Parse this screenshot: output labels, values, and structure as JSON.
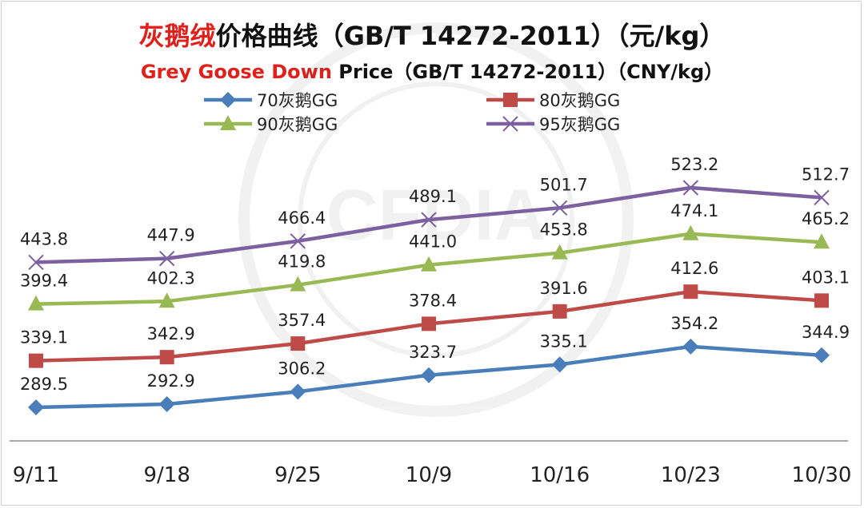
{
  "chart_data": {
    "type": "line",
    "title_highlight": "灰鹅绒",
    "title_rest": "价格曲线（GB/T 14272-2011）（元/kg）",
    "subtitle_highlight": "Grey Goose Down",
    "subtitle_rest": " Price（GB/T 14272-2011）（CNY/kg）",
    "categories": [
      "9/11",
      "9/18",
      "9/25",
      "10/9",
      "10/16",
      "10/23",
      "10/30"
    ],
    "series": [
      {
        "name": "70灰鹅GG",
        "values": [
          289.5,
          292.9,
          306.2,
          323.7,
          335.1,
          354.2,
          344.9
        ],
        "color": "#4a7ebb",
        "marker": "diamond"
      },
      {
        "name": "80灰鹅GG",
        "values": [
          339.1,
          342.9,
          357.4,
          378.4,
          391.6,
          412.6,
          403.1
        ],
        "color": "#be4b48",
        "marker": "square"
      },
      {
        "name": "90灰鹅GG",
        "values": [
          399.4,
          402.3,
          419.8,
          441.0,
          453.8,
          474.1,
          465.2
        ],
        "color": "#98b954",
        "marker": "triangle"
      },
      {
        "name": "95灰鹅GG",
        "values": [
          443.8,
          447.9,
          466.4,
          489.1,
          501.7,
          523.2,
          512.7
        ],
        "color": "#7d60a0",
        "marker": "x"
      }
    ],
    "value_labels": {
      "70灰鹅GG": [
        "289.5",
        "292.9",
        "306.2",
        "323.7",
        "335.1",
        "354.2",
        "344.9"
      ],
      "80灰鹅GG": [
        "339.1",
        "342.9",
        "357.4",
        "378.4",
        "391.6",
        "412.6",
        "403.1"
      ],
      "90灰鹅GG": [
        "399.4",
        "402.3",
        "419.8",
        "441.0",
        "453.8",
        "474.1",
        "465.2"
      ],
      "95灰鹅GG": [
        "443.8",
        "447.9",
        "466.4",
        "489.1",
        "501.7",
        "523.2",
        "512.7"
      ]
    },
    "grid": false,
    "legend_position": "top",
    "watermark_text": "CFDIA 中国羽绒工业协会"
  }
}
